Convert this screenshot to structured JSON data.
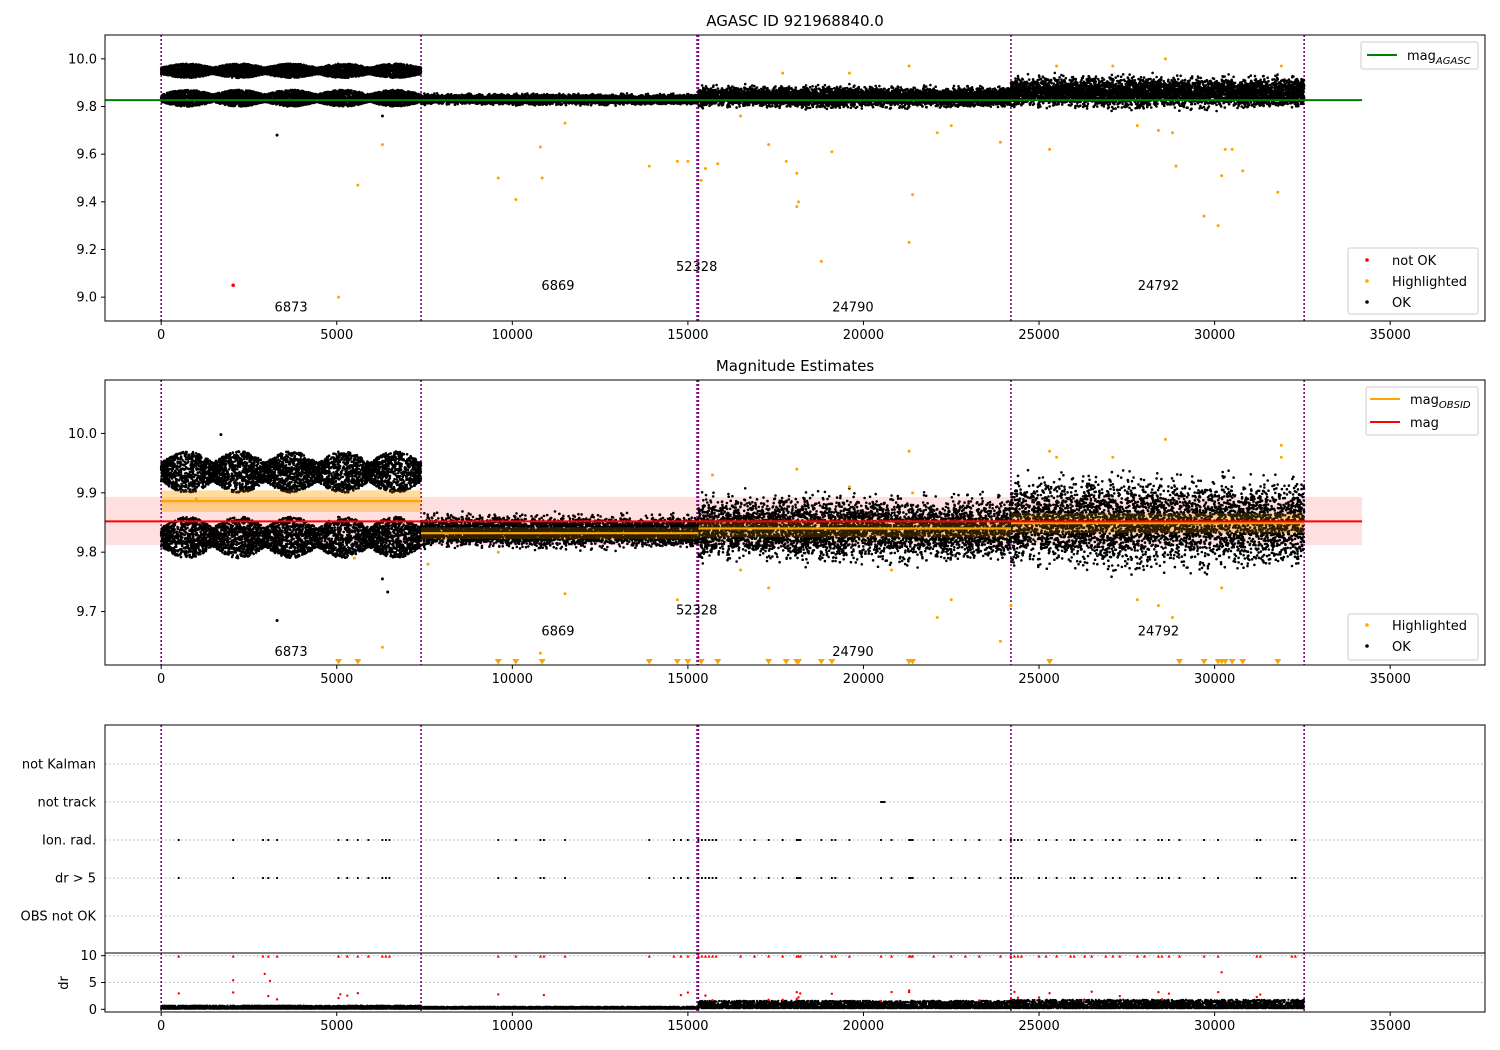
{
  "chart_data": [
    {
      "type": "scatter",
      "title": "AGASC ID 921968840.0",
      "xlim": [
        -1600,
        37700
      ],
      "ylim": [
        8.9,
        10.1
      ],
      "xticks": [
        0,
        5000,
        10000,
        15000,
        20000,
        25000,
        30000,
        35000
      ],
      "yticks": [
        9.0,
        9.2,
        9.4,
        9.6,
        9.8,
        10.0
      ],
      "ytick_labels": [
        "9.0",
        "9.2",
        "9.4",
        "9.6",
        "9.8",
        "10.0"
      ],
      "obs_boundaries": [
        0,
        7400,
        15300,
        24200,
        32550
      ],
      "obs_labels": [
        {
          "text": "6873",
          "x": 3700,
          "y": 8.94
        },
        {
          "text": "6869",
          "x": 11300,
          "y": 9.03
        },
        {
          "text": "52328",
          "x": 15250,
          "y": 9.11
        },
        {
          "text": "24790",
          "x": 19700,
          "y": 8.94
        },
        {
          "text": "24792",
          "x": 28400,
          "y": 9.03
        }
      ],
      "mag_agasc": 9.827,
      "mag_agasc_range": [
        -1600,
        34200
      ],
      "ok_bands": [
        {
          "x0": 0,
          "x1": 7400,
          "lo": 9.8,
          "hi": 9.87,
          "style": "osc"
        },
        {
          "x0": 0,
          "x1": 7400,
          "lo": 9.92,
          "hi": 9.98,
          "style": "osc"
        },
        {
          "x0": 7400,
          "x1": 15300,
          "lo": 9.81,
          "hi": 9.85,
          "style": "flat"
        },
        {
          "x0": 15300,
          "x1": 24200,
          "lo": 9.8,
          "hi": 9.88,
          "style": "flat"
        },
        {
          "x0": 24200,
          "x1": 32550,
          "lo": 9.8,
          "hi": 9.92,
          "style": "flat"
        }
      ],
      "highlighted": [
        [
          5050,
          9.0
        ],
        [
          5600,
          9.47
        ],
        [
          6300,
          9.64
        ],
        [
          9600,
          9.5
        ],
        [
          10100,
          9.41
        ],
        [
          10850,
          9.5
        ],
        [
          10800,
          9.63
        ],
        [
          11500,
          9.73
        ],
        [
          13900,
          9.55
        ],
        [
          14700,
          9.57
        ],
        [
          15000,
          9.57
        ],
        [
          15380,
          9.49
        ],
        [
          15500,
          9.54
        ],
        [
          15850,
          9.56
        ],
        [
          16500,
          9.76
        ],
        [
          17300,
          9.64
        ],
        [
          17800,
          9.57
        ],
        [
          18100,
          9.52
        ],
        [
          18150,
          9.4
        ],
        [
          18100,
          9.38
        ],
        [
          18800,
          9.15
        ],
        [
          19100,
          9.61
        ],
        [
          21300,
          9.97
        ],
        [
          21400,
          9.43
        ],
        [
          21300,
          9.23
        ],
        [
          22100,
          9.69
        ],
        [
          22500,
          9.72
        ],
        [
          23900,
          9.65
        ],
        [
          25300,
          9.62
        ],
        [
          27800,
          9.72
        ],
        [
          28400,
          9.7
        ],
        [
          28800,
          9.69
        ],
        [
          28900,
          9.55
        ],
        [
          29700,
          9.34
        ],
        [
          30100,
          9.3
        ],
        [
          30200,
          9.51
        ],
        [
          30300,
          9.62
        ],
        [
          30500,
          9.62
        ],
        [
          30800,
          9.53
        ],
        [
          31800,
          9.44
        ],
        [
          28600,
          10.0
        ],
        [
          31900,
          9.97
        ],
        [
          19600,
          9.94
        ],
        [
          17700,
          9.94
        ],
        [
          25500,
          9.97
        ],
        [
          27100,
          9.97
        ]
      ],
      "ok_outliers": [
        [
          3300,
          9.68
        ],
        [
          6300,
          9.76
        ]
      ],
      "not_ok": [
        [
          2050,
          9.05
        ]
      ],
      "legend_top": [
        {
          "label": "mag",
          "sub": "AGASC",
          "color": "#008000"
        }
      ],
      "legend_bottom": [
        {
          "label": "not OK",
          "color": "#ff0000"
        },
        {
          "label": "Highlighted",
          "color": "#ffa500"
        },
        {
          "label": "OK",
          "color": "#000000"
        }
      ]
    },
    {
      "type": "scatter",
      "title": "Magnitude Estimates",
      "xlim": [
        -1600,
        37700
      ],
      "ylim": [
        9.61,
        10.09
      ],
      "xticks": [
        0,
        5000,
        10000,
        15000,
        20000,
        25000,
        30000,
        35000
      ],
      "yticks": [
        9.7,
        9.8,
        9.9,
        10.0
      ],
      "ytick_labels": [
        "9.7",
        "9.8",
        "9.9",
        "10.0"
      ],
      "obs_boundaries": [
        0,
        7400,
        15300,
        24200,
        32550
      ],
      "obs_labels": [
        {
          "text": "6873",
          "x": 3700,
          "y": 9.625
        },
        {
          "text": "6869",
          "x": 11300,
          "y": 9.66
        },
        {
          "text": "52328",
          "x": 15250,
          "y": 9.695
        },
        {
          "text": "24790",
          "x": 19700,
          "y": 9.625
        },
        {
          "text": "24792",
          "x": 28400,
          "y": 9.66
        }
      ],
      "mag": 9.852,
      "mag_band": [
        9.812,
        9.893
      ],
      "mag_range": [
        -1600,
        34200
      ],
      "mag_obsid": [
        {
          "x0": 0,
          "x1": 7400,
          "value": 9.886,
          "band": [
            9.868,
            9.904
          ]
        },
        {
          "x0": 7400,
          "x1": 15300,
          "value": 9.832,
          "band": [
            9.822,
            9.842
          ]
        },
        {
          "x0": 15300,
          "x1": 24200,
          "value": 9.84,
          "band": [
            9.825,
            9.855
          ]
        },
        {
          "x0": 24200,
          "x1": 32550,
          "value": 9.849,
          "band": [
            9.832,
            9.866
          ]
        }
      ],
      "ok_bands": [
        {
          "x0": 0,
          "x1": 7400,
          "lo": 9.79,
          "hi": 9.86,
          "style": "osc"
        },
        {
          "x0": 0,
          "x1": 7400,
          "lo": 9.9,
          "hi": 9.97,
          "style": "osc"
        },
        {
          "x0": 7400,
          "x1": 15300,
          "lo": 9.81,
          "hi": 9.86,
          "style": "flat"
        },
        {
          "x0": 15300,
          "x1": 24200,
          "lo": 9.79,
          "hi": 9.89,
          "style": "flat"
        },
        {
          "x0": 24200,
          "x1": 32550,
          "lo": 9.78,
          "hi": 9.92,
          "style": "flat"
        }
      ],
      "highlighted": [
        [
          1000,
          9.89
        ],
        [
          5500,
          9.79
        ],
        [
          6300,
          9.64
        ],
        [
          7600,
          9.78
        ],
        [
          9600,
          9.8
        ],
        [
          10800,
          9.63
        ],
        [
          11500,
          9.73
        ],
        [
          14700,
          9.72
        ],
        [
          15700,
          9.93
        ],
        [
          16500,
          9.77
        ],
        [
          17300,
          9.74
        ],
        [
          18100,
          9.94
        ],
        [
          19600,
          9.91
        ],
        [
          20800,
          9.77
        ],
        [
          21300,
          9.97
        ],
        [
          21400,
          9.9
        ],
        [
          22100,
          9.69
        ],
        [
          22500,
          9.72
        ],
        [
          23900,
          9.65
        ],
        [
          24200,
          9.71
        ],
        [
          25300,
          9.97
        ],
        [
          25500,
          9.96
        ],
        [
          27100,
          9.96
        ],
        [
          27800,
          9.72
        ],
        [
          28400,
          9.71
        ],
        [
          28600,
          9.99
        ],
        [
          28800,
          9.69
        ],
        [
          30200,
          9.74
        ],
        [
          31900,
          9.98
        ],
        [
          31900,
          9.96
        ]
      ],
      "highlighted_clipped_x": [
        5050,
        5600,
        9600,
        10100,
        10850,
        13900,
        14700,
        15000,
        15380,
        15850,
        17300,
        17800,
        18100,
        18150,
        18800,
        19100,
        21300,
        21400,
        25300,
        29000,
        29700,
        30100,
        30200,
        30300,
        30500,
        30800,
        31800
      ],
      "ok_outliers": [
        [
          3300,
          9.685
        ],
        [
          6300,
          9.755
        ],
        [
          6450,
          9.733
        ],
        [
          1700,
          9.998
        ]
      ],
      "legend_top": [
        {
          "label": "mag",
          "sub": "OBSID",
          "color": "#ffa500"
        },
        {
          "label": "mag",
          "sub": "",
          "color": "#ff0000"
        }
      ],
      "legend_bottom": [
        {
          "label": "Highlighted",
          "color": "#ffa500"
        },
        {
          "label": "OK",
          "color": "#000000"
        }
      ]
    },
    {
      "type": "scatter",
      "title": "",
      "xlim": [
        -1600,
        37700
      ],
      "categories": [
        "OBS not OK",
        "dr > 5",
        "Ion. rad.",
        "not track",
        "not Kalman"
      ],
      "obs_boundaries": [
        0,
        7400,
        15300,
        24200,
        32550
      ],
      "flag_times": [
        500,
        2050,
        2900,
        3050,
        3300,
        5050,
        5300,
        5600,
        5900,
        6300,
        6400,
        6500,
        9600,
        10100,
        10800,
        10900,
        11500,
        13900,
        14600,
        14800,
        15000,
        15300,
        15400,
        15500,
        15600,
        15700,
        15800,
        16500,
        16900,
        17300,
        17700,
        18100,
        18150,
        18200,
        18800,
        19100,
        19200,
        19600,
        20500,
        20800,
        21300,
        21350,
        21400,
        22000,
        22500,
        22900,
        23300,
        23900,
        24200,
        24300,
        24400,
        24500,
        25000,
        25200,
        25500,
        25900,
        26000,
        26300,
        26500,
        26900,
        27100,
        27300,
        27800,
        28000,
        28400,
        28500,
        28700,
        29000,
        29700,
        30100,
        31200,
        31300,
        32200,
        32300
      ],
      "not_track_times": [
        20500,
        20550,
        20600
      ]
    },
    {
      "type": "scatter",
      "title": "",
      "xlim": [
        -1600,
        37700
      ],
      "ylim": [
        -0.5,
        10.5
      ],
      "xticks": [
        0,
        5000,
        10000,
        15000,
        20000,
        25000,
        30000,
        35000
      ],
      "yticks": [
        0,
        5,
        10
      ],
      "ytick_labels": [
        "0",
        "5",
        "10"
      ],
      "ylabel": "dr",
      "obs_boundaries": [
        0,
        7400,
        15300,
        24200,
        32550
      ],
      "dr_bands": [
        {
          "x0": 0,
          "x1": 7400,
          "lo": 0.1,
          "hi": 0.7
        },
        {
          "x0": 7400,
          "x1": 15300,
          "lo": 0.1,
          "hi": 0.5
        },
        {
          "x0": 15300,
          "x1": 24200,
          "lo": 0.2,
          "hi": 1.6
        },
        {
          "x0": 24200,
          "x1": 32550,
          "lo": 0.2,
          "hi": 1.8
        }
      ],
      "dr_red_mid": [
        [
          2050,
          5.4
        ],
        [
          2950,
          6.6
        ],
        [
          3100,
          5.3
        ],
        [
          5100,
          2.8
        ],
        [
          5600,
          3.0
        ],
        [
          18100,
          3.2
        ],
        [
          19100,
          2.9
        ],
        [
          21300,
          3.5
        ],
        [
          30200,
          6.9
        ],
        [
          30100,
          3.2
        ],
        [
          25300,
          3.0
        ],
        [
          28400,
          3.2
        ]
      ]
    }
  ]
}
